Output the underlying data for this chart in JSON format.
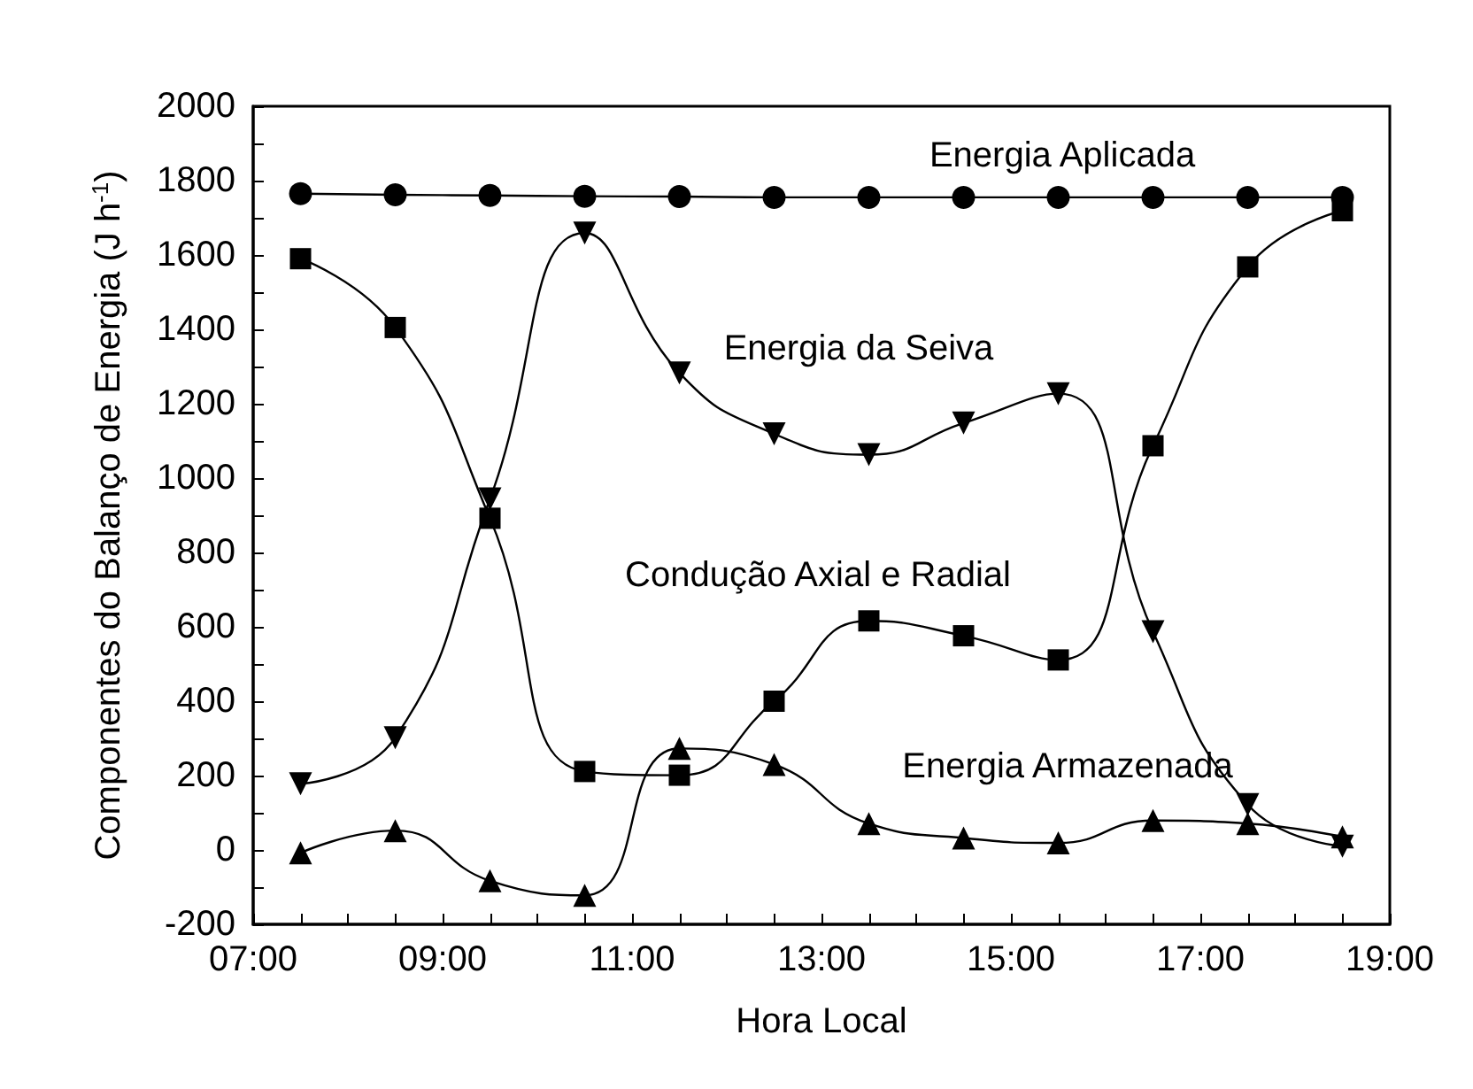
{
  "chart_data": {
    "type": "line",
    "xlabel": "Hora Local",
    "ylabel": "Componentes do Balanço de Energia (J h$^{-1}$)",
    "x": [
      7.5,
      8.5,
      9.5,
      10.5,
      11.5,
      12.5,
      13.5,
      14.5,
      15.5,
      16.5,
      17.5,
      18.5
    ],
    "xlim": [
      7,
      19
    ],
    "xticks": [
      {
        "value": 7,
        "label": "07:00"
      },
      {
        "value": 7.5,
        "label": null
      },
      {
        "value": 8,
        "label": null
      },
      {
        "value": 8.5,
        "label": null
      },
      {
        "value": 9,
        "label": "09:00"
      },
      {
        "value": 9.5,
        "label": null
      },
      {
        "value": 10,
        "label": null
      },
      {
        "value": 10.5,
        "label": null
      },
      {
        "value": 11,
        "label": "11:00"
      },
      {
        "value": 11.5,
        "label": null
      },
      {
        "value": 12,
        "label": null
      },
      {
        "value": 12.5,
        "label": null
      },
      {
        "value": 13,
        "label": "13:00"
      },
      {
        "value": 13.5,
        "label": null
      },
      {
        "value": 14,
        "label": null
      },
      {
        "value": 14.5,
        "label": null
      },
      {
        "value": 15,
        "label": "15:00"
      },
      {
        "value": 15.5,
        "label": null
      },
      {
        "value": 16,
        "label": null
      },
      {
        "value": 16.5,
        "label": null
      },
      {
        "value": 17,
        "label": "17:00"
      },
      {
        "value": 17.5,
        "label": null
      },
      {
        "value": 18,
        "label": null
      },
      {
        "value": 18.5,
        "label": null
      },
      {
        "value": 19,
        "label": "19:00"
      }
    ],
    "ylim": [
      -200,
      2000
    ],
    "yticks": [
      -200,
      {
        "value": -100,
        "label": null
      },
      0,
      {
        "value": 100,
        "label": null
      },
      200,
      {
        "value": 300,
        "label": null
      },
      400,
      {
        "value": 500,
        "label": null
      },
      600,
      {
        "value": 700,
        "label": null
      },
      800,
      {
        "value": 900,
        "label": null
      },
      1000,
      {
        "value": 1100,
        "label": null
      },
      1200,
      {
        "value": 1300,
        "label": null
      },
      1400,
      {
        "value": 1500,
        "label": null
      },
      1600,
      {
        "value": 1700,
        "label": null
      },
      1800,
      {
        "value": 1900,
        "label": null
      },
      2000
    ],
    "grid": false,
    "line_style": "solid",
    "series": [
      {
        "color": "#000000",
        "marker": "circle",
        "values": [
          1765,
          1762,
          1760,
          1758,
          1757,
          1755,
          1755,
          1755,
          1755,
          1755,
          1755,
          1755
        ]
      },
      {
        "color": "#000000",
        "marker": "square",
        "values": [
          1590,
          1405,
          892,
          211,
          201,
          400,
          616,
          576,
          511,
          1087,
          1568,
          1719
        ]
      },
      {
        "color": "#000000",
        "marker": "triangle-down",
        "values": [
          178,
          302,
          944,
          1659,
          1283,
          1119,
          1063,
          1148,
          1227,
          587,
          122,
          10
        ]
      },
      {
        "color": "#000000",
        "marker": "triangle",
        "values": [
          -8,
          52,
          -83,
          -122,
          273,
          230,
          71,
          32,
          19,
          79,
          71,
          35
        ]
      }
    ],
    "annotations": [
      "Energia Aplicada",
      "Energia da Seiva",
      "Condução Axial e Radial",
      "Energia Armazenada"
    ]
  }
}
